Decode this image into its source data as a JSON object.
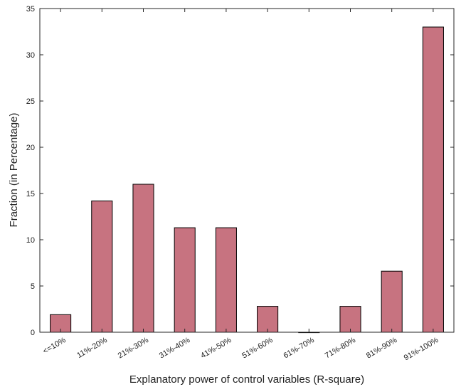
{
  "chart_data": {
    "type": "bar",
    "title": "",
    "xlabel": "Explanatory power of control variables (R-square)",
    "ylabel": "Fraction (in Percentage)",
    "categories": [
      "<=10%",
      "11%-20%",
      "21%-30%",
      "31%-40%",
      "41%-50%",
      "51%-60%",
      "61%-70%",
      "71%-80%",
      "81%-90%",
      "91%-100%"
    ],
    "values": [
      1.9,
      14.2,
      16.0,
      11.3,
      11.3,
      2.8,
      0,
      2.8,
      6.6,
      33.0
    ],
    "ylim": [
      0,
      35
    ],
    "yticks": [
      0,
      5,
      10,
      15,
      20,
      25,
      30,
      35
    ],
    "grid": false,
    "legend": "none",
    "colors": {
      "bar_fill": "#c77380",
      "bar_stroke": "#000000",
      "axis": "#262626"
    }
  }
}
